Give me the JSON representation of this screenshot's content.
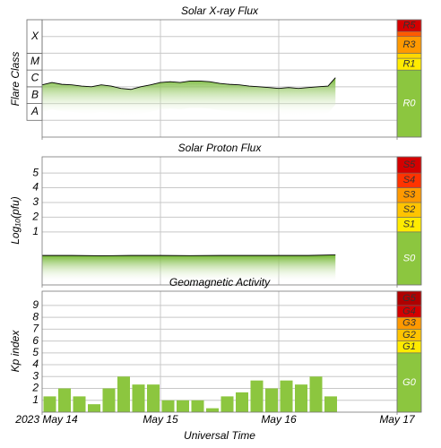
{
  "chart_data": [
    {
      "type": "line",
      "title": "Solar X-ray Flux",
      "ylabel": "Flare Class",
      "log": true,
      "xlim": [
        0,
        72
      ],
      "xticks": [
        0,
        24,
        48,
        72
      ],
      "ylim": [
        1e-09,
        0.01
      ],
      "grid_lines": [
        1e-08,
        1e-07,
        1e-06,
        1e-05,
        0.0001,
        0.001
      ],
      "classes": [
        {
          "label": "A",
          "from": 1e-08,
          "to": 1e-07
        },
        {
          "label": "B",
          "from": 1e-07,
          "to": 1e-06
        },
        {
          "label": "C",
          "from": 1e-06,
          "to": 1e-05
        },
        {
          "label": "M",
          "from": 1e-05,
          "to": 0.0001
        },
        {
          "label": "X",
          "from": 0.0001,
          "to": 0.01
        }
      ],
      "scale_base": {
        "label": "R0",
        "color": "#8cc63f"
      },
      "scale_levels": [
        {
          "label": "R1",
          "value": 1e-05,
          "color": "#ffeb00"
        },
        {
          "label": null,
          "value": 5e-05,
          "color": "#ffd800"
        },
        {
          "label": "R3",
          "value": 0.0001,
          "color": "#ff9900"
        },
        {
          "label": null,
          "value": 0.001,
          "color": "#ff5a00"
        },
        {
          "label": "R5",
          "value": 0.002,
          "color": "#d40000"
        }
      ],
      "series": [
        {
          "color": "#000000",
          "fill": "#8cc63f",
          "x": [
            0,
            2,
            4,
            6,
            8,
            10,
            12,
            14,
            16,
            18,
            20,
            22,
            24,
            26,
            28,
            30,
            32,
            34,
            36,
            38,
            40,
            42,
            44,
            46,
            48,
            50,
            52,
            54,
            56,
            58,
            59.5
          ],
          "values": [
            1.3e-06,
            1.8e-06,
            1.4e-06,
            1.3e-06,
            1.1e-06,
            1e-06,
            1.3e-06,
            1.1e-06,
            8e-07,
            7e-07,
            1e-06,
            1.3e-06,
            1.8e-06,
            2e-06,
            1.8e-06,
            2.2e-06,
            2.2e-06,
            2e-06,
            1.6e-06,
            1.4e-06,
            1.3e-06,
            1.1e-06,
            1e-06,
            9e-07,
            8e-07,
            9e-07,
            8e-07,
            9e-07,
            1e-06,
            1.1e-06,
            3.5e-06
          ]
        }
      ]
    },
    {
      "type": "line",
      "title": "Solar Proton Flux",
      "ylabel": "Log₁₀(pfu)",
      "xlim": [
        0,
        72
      ],
      "xticks": [
        0,
        24,
        48,
        72
      ],
      "ylim": [
        -2.6,
        6.1
      ],
      "yticks": [
        1,
        2,
        3,
        4,
        5
      ],
      "scale_base": {
        "label": "S0",
        "color": "#8cc63f"
      },
      "scale_levels": [
        {
          "label": "S1",
          "value": 1,
          "color": "#ffeb00"
        },
        {
          "label": "S2",
          "value": 2,
          "color": "#ffc400"
        },
        {
          "label": "S3",
          "value": 3,
          "color": "#ff9900"
        },
        {
          "label": "S4",
          "value": 4,
          "color": "#ff3300"
        },
        {
          "label": "S5",
          "value": 5,
          "color": "#d40000"
        }
      ],
      "series": [
        {
          "color": "#000000",
          "fill": "#8cc63f",
          "x": [
            0,
            6,
            12,
            18,
            24,
            30,
            36,
            42,
            48,
            54,
            59.5
          ],
          "values": [
            -0.6,
            -0.6,
            -0.62,
            -0.6,
            -0.6,
            -0.61,
            -0.6,
            -0.6,
            -0.6,
            -0.6,
            -0.56
          ]
        }
      ]
    },
    {
      "type": "bar",
      "title": "Geomagnetic Activity",
      "ylabel": "Kp index",
      "xlabel": "Universal Time",
      "xlim": [
        0,
        72
      ],
      "xticks": [
        {
          "value": 0,
          "label": "2023 May 14"
        },
        {
          "value": 24,
          "label": "May 15"
        },
        {
          "value": 48,
          "label": "May 16"
        },
        {
          "value": 72,
          "label": "May 17"
        }
      ],
      "ylim": [
        0,
        10.2
      ],
      "yticks": [
        1,
        2,
        3,
        4,
        5,
        6,
        7,
        8,
        9
      ],
      "color": "#8cc63f",
      "scale_base": {
        "label": "G0",
        "color": "#8cc63f"
      },
      "scale_levels": [
        {
          "label": "G1",
          "value": 5,
          "color": "#ffeb00"
        },
        {
          "label": "G2",
          "value": 6,
          "color": "#ffc400"
        },
        {
          "label": "G3",
          "value": 7,
          "color": "#ff9900"
        },
        {
          "label": "G4",
          "value": 8,
          "color": "#d40000"
        },
        {
          "label": "G5",
          "value": 9,
          "color": "#b00000"
        }
      ],
      "x": [
        0,
        3,
        6,
        9,
        12,
        15,
        18,
        21,
        24,
        27,
        30,
        33,
        36,
        39,
        42,
        45,
        48,
        51,
        54,
        57
      ],
      "values": [
        1.33,
        2.0,
        1.33,
        0.67,
        2.0,
        3.0,
        2.33,
        2.33,
        1.0,
        1.0,
        1.0,
        0.33,
        1.33,
        1.67,
        2.67,
        2.0,
        2.67,
        2.33,
        3.0,
        1.33
      ]
    }
  ]
}
